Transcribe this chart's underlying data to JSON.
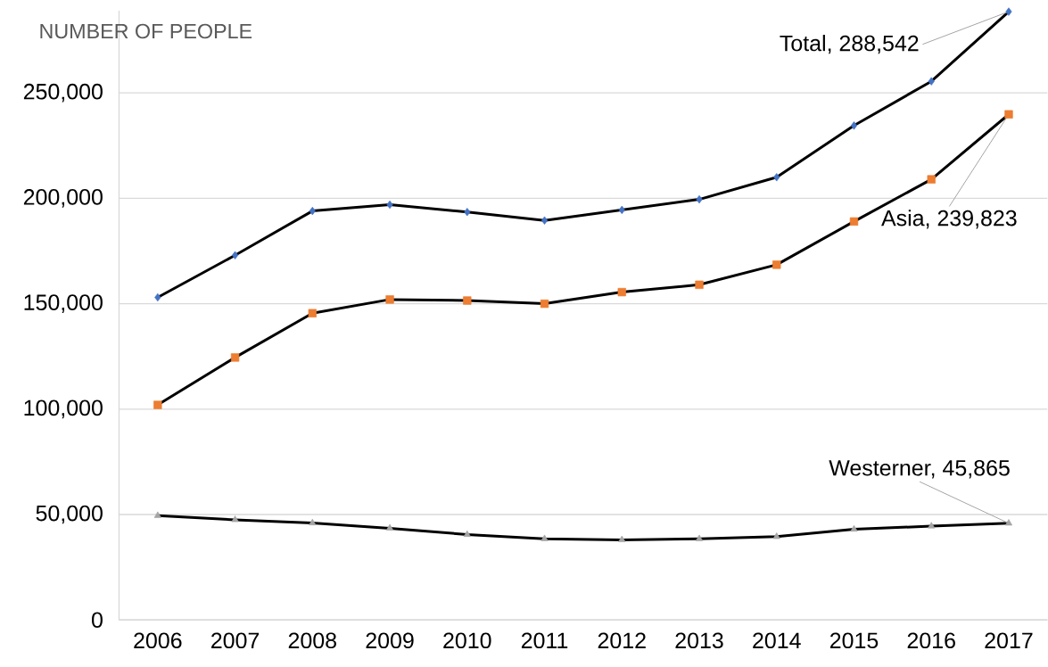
{
  "chart_data": {
    "type": "line",
    "ylabel": "NUMBER OF PEOPLE",
    "categories": [
      "2006",
      "2007",
      "2008",
      "2009",
      "2010",
      "2011",
      "2012",
      "2013",
      "2014",
      "2015",
      "2016",
      "2017"
    ],
    "series": [
      {
        "color": "#4472c4",
        "marker": "diamond",
        "values": [
          153000,
          173000,
          194000,
          197000,
          193500,
          189500,
          194500,
          199500,
          210000,
          234500,
          255500,
          288542
        ]
      },
      {
        "color": "#ed7d31",
        "marker": "square",
        "values": [
          102000,
          124500,
          145500,
          152000,
          151500,
          150000,
          155500,
          159000,
          168500,
          189000,
          209000,
          239823
        ]
      },
      {
        "color": "#a5a5a5",
        "marker": "triangle",
        "values": [
          49500,
          47500,
          46000,
          43500,
          40500,
          38500,
          38000,
          38500,
          39500,
          43000,
          44500,
          45865
        ]
      }
    ],
    "ylim": [
      0,
      289000
    ],
    "yticks": [
      {
        "value": 0,
        "label": "0"
      },
      {
        "value": 50000,
        "label": "50,000"
      },
      {
        "value": 100000,
        "label": "100,000"
      },
      {
        "value": 150000,
        "label": "150,000"
      },
      {
        "value": 200000,
        "label": "200,000"
      },
      {
        "value": 250000,
        "label": "250,000"
      }
    ],
    "grid": "y",
    "annotations": [
      {
        "text": "Total, 288,542",
        "x": "2017",
        "y": 288542
      },
      {
        "text": "Asia, 239,823",
        "x": "2017",
        "y": 239823
      },
      {
        "text": "Westerner, 45,865",
        "x": "2017",
        "y": 45865
      }
    ]
  }
}
